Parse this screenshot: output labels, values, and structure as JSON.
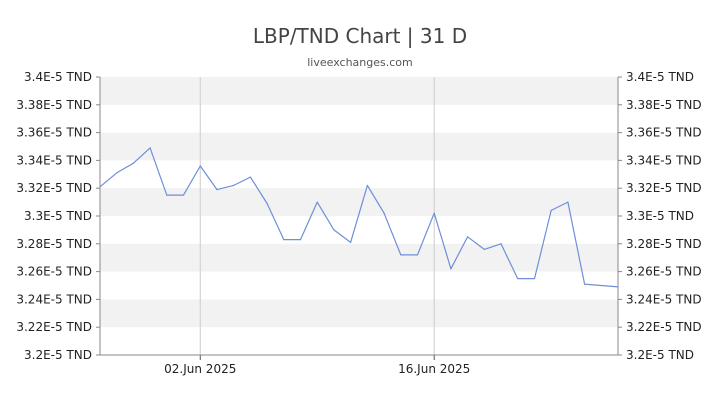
{
  "chart_data": {
    "type": "line",
    "title": "LBP/TND Chart | 31 D",
    "subtitle": "liveexchanges.com",
    "ylim": [
      3.2e-05,
      3.4e-05
    ],
    "y_ticks": [
      "3.4E-5 TND",
      "3.38E-5 TND",
      "3.36E-5 TND",
      "3.34E-5 TND",
      "3.32E-5 TND",
      "3.3E-5 TND",
      "3.28E-5 TND",
      "3.26E-5 TND",
      "3.24E-5 TND",
      "3.22E-5 TND",
      "3.2E-5 TND"
    ],
    "x_ticks": [
      {
        "label": "02.Jun 2025",
        "index": 6
      },
      {
        "label": "16.Jun 2025",
        "index": 20
      }
    ],
    "grid": "alternating horizontal bands",
    "colors": {
      "line": "#6f8fd8",
      "band": "#f2f2f2",
      "vline": "#cccccc"
    },
    "values": [
      3.321,
      3.331,
      3.338,
      3.349,
      3.315,
      3.315,
      3.336,
      3.319,
      3.322,
      3.328,
      3.309,
      3.283,
      3.283,
      3.31,
      3.29,
      3.281,
      3.322,
      3.302,
      3.272,
      3.272,
      3.302,
      3.262,
      3.285,
      3.276,
      3.28,
      3.255,
      3.255,
      3.304,
      3.31,
      3.251,
      3.25,
      3.249
    ]
  }
}
